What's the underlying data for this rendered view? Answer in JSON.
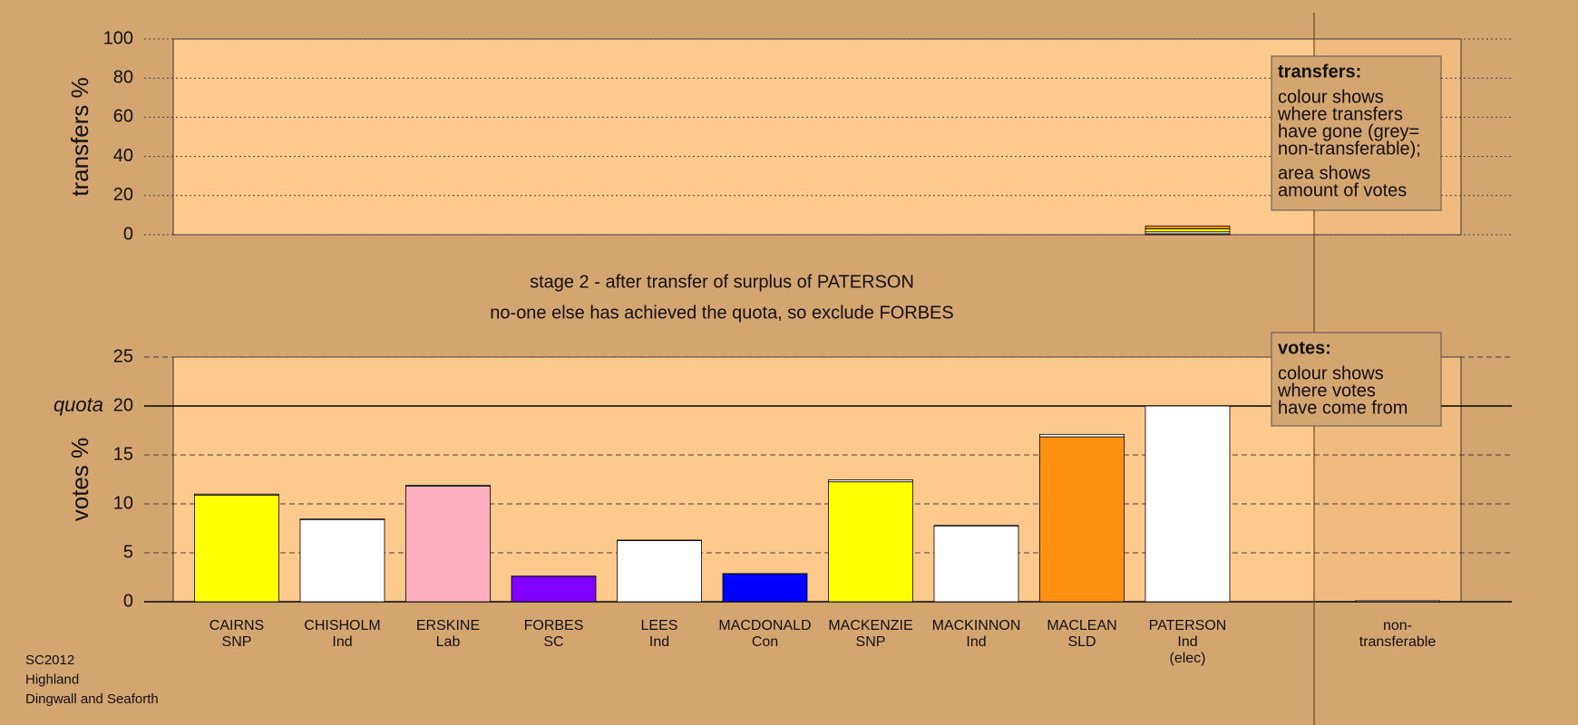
{
  "chart_data": [
    {
      "type": "bar",
      "y_label": "transfers %",
      "ylim": [
        0,
        100
      ],
      "yticks": [
        0,
        20,
        40,
        60,
        80,
        100
      ],
      "grid": true,
      "series": [
        {
          "color": "#c8c8c8",
          "values": [
            null,
            null,
            null,
            null,
            null,
            null,
            null,
            null,
            null,
            0.5,
            null
          ]
        },
        {
          "color": "#ffffff",
          "values": [
            null,
            null,
            null,
            null,
            null,
            null,
            null,
            null,
            null,
            1,
            null
          ]
        },
        {
          "color": "#ffff00",
          "values": [
            null,
            null,
            null,
            null,
            null,
            null,
            null,
            null,
            null,
            1.5,
            null
          ]
        },
        {
          "color": "#ff9010",
          "values": [
            null,
            null,
            null,
            null,
            null,
            null,
            null,
            null,
            null,
            1.5,
            null
          ]
        }
      ]
    },
    {
      "type": "bar",
      "y_label": "votes %",
      "ylim": [
        0,
        25
      ],
      "yticks": [
        0,
        5,
        10,
        15,
        20,
        25
      ],
      "grid": true,
      "quota": {
        "value": 20,
        "label": "quota"
      },
      "categories": [
        [
          "CAIRNS",
          "SNP"
        ],
        [
          "CHISHOLM",
          "Ind"
        ],
        [
          "ERSKINE",
          "Lab"
        ],
        [
          "FORBES",
          "SC"
        ],
        [
          "LEES",
          "Ind"
        ],
        [
          "MACDONALD",
          "Con"
        ],
        [
          "MACKENZIE",
          "SNP"
        ],
        [
          "MACKINNON",
          "Ind"
        ],
        [
          "MACLEAN",
          "SLD"
        ],
        [
          "PATERSON",
          "Ind",
          "(elec)"
        ],
        [
          "non-",
          "transferable"
        ]
      ],
      "series": [
        {
          "colors": [
            "#ffff00",
            "#ffffff",
            "#ffb0c0",
            "#8000ff",
            "#ffffff",
            "#0000ff",
            "#ffff00",
            "#ffffff",
            "#ff9010",
            "#ffffff",
            "#c8c8c8"
          ],
          "values": [
            10.9,
            8.4,
            11.8,
            2.6,
            6.25,
            2.85,
            12.25,
            7.75,
            16.85,
            20,
            0
          ]
        },
        {
          "color": "#ffffff",
          "values": [
            0.1,
            0.05,
            0.1,
            0.02,
            0.05,
            0.03,
            0.2,
            0.05,
            0.25,
            0,
            0.1
          ]
        }
      ]
    }
  ],
  "stage": [
    "stage 2 - after transfer of surplus of PATERSON",
    "no-one else has achieved the quota, so exclude FORBES"
  ],
  "legends": [
    {
      "title": "transfers:",
      "lines": [
        "colour shows",
        "where transfers",
        "have gone (grey=",
        "non-transferable);",
        "area shows",
        "amount of votes"
      ]
    },
    {
      "title": "votes:",
      "lines": [
        "colour shows",
        "where votes",
        "have come from"
      ]
    }
  ],
  "footer": [
    "SC2012",
    "Highland",
    "Dingwall and Seaforth"
  ]
}
